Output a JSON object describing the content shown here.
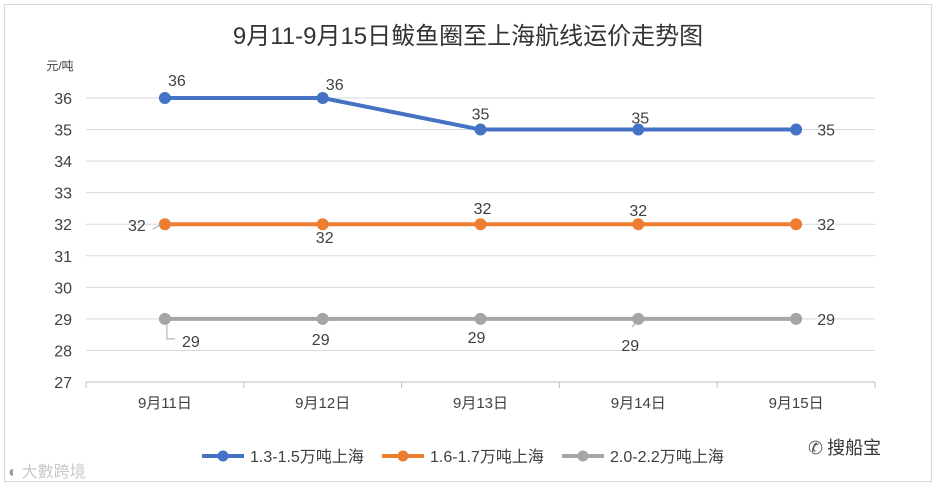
{
  "chart_data": {
    "type": "line",
    "title": "9月11-9月15日鲅鱼圈至上海航线运价走势图",
    "ylabel": "元/吨",
    "xlabel": "",
    "ylim": [
      27,
      36
    ],
    "yticks": [
      "27",
      "28",
      "29",
      "30",
      "31",
      "32",
      "33",
      "34",
      "35",
      "36"
    ],
    "categories": [
      "9月11日",
      "9月12日",
      "9月13日",
      "9月14日",
      "9月15日"
    ],
    "grid": true,
    "legend": "bottom",
    "series": [
      {
        "name": "1.3-1.5万吨上海",
        "color": "#4472c4",
        "values": [
          36,
          36,
          35,
          35,
          35
        ],
        "labels": [
          "36",
          "36",
          "35",
          "35",
          "35"
        ]
      },
      {
        "name": "1.6-1.7万吨上海",
        "color": "#ed7d31",
        "values": [
          32,
          32,
          32,
          32,
          32
        ],
        "labels": [
          "32",
          "32",
          "32",
          "32",
          "32"
        ]
      },
      {
        "name": "2.0-2.2万吨上海",
        "color": "#a5a5a5",
        "values": [
          29,
          29,
          29,
          29,
          29
        ],
        "labels": [
          "29",
          "29",
          "29",
          "29",
          "29"
        ]
      }
    ]
  },
  "watermarks": {
    "left": "大數跨境",
    "right": "搜船宝"
  }
}
